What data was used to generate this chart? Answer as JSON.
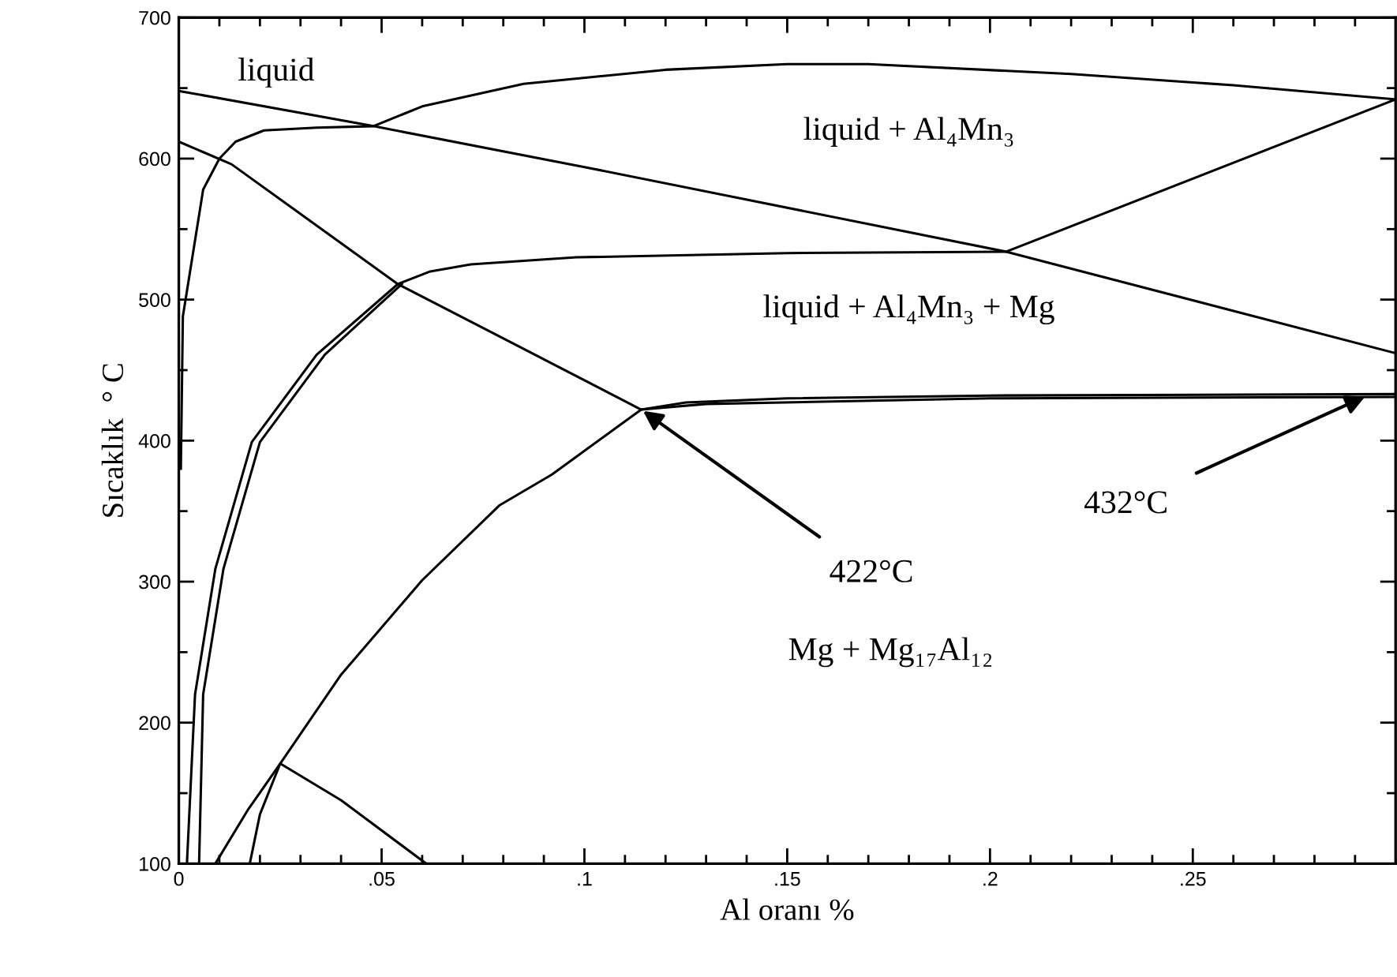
{
  "chart_data": {
    "type": "line",
    "xlabel": "Al oranı %",
    "ylabel": "Sıcaklık  ° C",
    "xlim": [
      0,
      0.3
    ],
    "ylim": [
      100,
      700
    ],
    "xticks": [
      0,
      {
        "value": 0.01,
        "label": null
      },
      {
        "value": 0.02,
        "label": null
      },
      {
        "value": 0.03,
        "label": null
      },
      {
        "value": 0.04,
        "label": null
      },
      {
        "value": 0.05,
        "label": ".05"
      },
      {
        "value": 0.06,
        "label": null
      },
      {
        "value": 0.07,
        "label": null
      },
      {
        "value": 0.08,
        "label": null
      },
      {
        "value": 0.09,
        "label": null
      },
      {
        "value": 0.1,
        "label": ".1"
      },
      {
        "value": 0.11,
        "label": null
      },
      {
        "value": 0.12,
        "label": null
      },
      {
        "value": 0.13,
        "label": null
      },
      {
        "value": 0.14,
        "label": null
      },
      {
        "value": 0.15,
        "label": ".15"
      },
      {
        "value": 0.16,
        "label": null
      },
      {
        "value": 0.17,
        "label": null
      },
      {
        "value": 0.18,
        "label": null
      },
      {
        "value": 0.19,
        "label": null
      },
      {
        "value": 0.2,
        "label": ".2"
      },
      {
        "value": 0.21,
        "label": null
      },
      {
        "value": 0.22,
        "label": null
      },
      {
        "value": 0.23,
        "label": null
      },
      {
        "value": 0.24,
        "label": null
      },
      {
        "value": 0.25,
        "label": ".25"
      },
      {
        "value": 0.26,
        "label": null
      },
      {
        "value": 0.27,
        "label": null
      },
      {
        "value": 0.28,
        "label": null
      },
      {
        "value": 0.29,
        "label": null
      }
    ],
    "yticks": [
      100,
      {
        "value": 150,
        "label": null
      },
      200,
      {
        "value": 250,
        "label": null
      },
      300,
      {
        "value": 350,
        "label": null
      },
      400,
      {
        "value": 450,
        "label": null
      },
      500,
      {
        "value": 550,
        "label": null
      },
      600,
      {
        "value": 650,
        "label": null
      },
      700
    ],
    "grid": false,
    "legend": false,
    "marker": "none",
    "line_style": "solid",
    "series": [
      {
        "color": "#000000",
        "x": [
          0,
          0.048,
          0.1,
          0.204,
          0.3
        ],
        "values": [
          648,
          623,
          594,
          534,
          462
        ]
      },
      {
        "color": "#000000",
        "x": [
          0.0005,
          0.001,
          0.003,
          0.006,
          0.01,
          0.014,
          0.021,
          0.034,
          0.048,
          0.06,
          0.085,
          0.12,
          0.15,
          0.17,
          0.22,
          0.26,
          0.3
        ],
        "values": [
          380,
          488,
          524,
          578,
          600,
          612,
          620,
          622,
          623,
          637,
          653,
          663,
          667,
          667,
          660,
          652,
          642
        ]
      },
      {
        "color": "#000000",
        "x": [
          0.002,
          0.004,
          0.009,
          0.018,
          0.034,
          0.054,
          0.062,
          0.072,
          0.098,
          0.15,
          0.204,
          0.3
        ],
        "values": [
          100,
          220,
          309,
          399,
          461,
          511,
          520,
          525,
          530,
          533,
          534,
          642
        ]
      },
      {
        "color": "#000000",
        "x": [
          0,
          0.013,
          0.054,
          0.079,
          0.114,
          0.125,
          0.15,
          0.2,
          0.3
        ],
        "values": [
          612,
          596,
          511,
          474,
          422,
          427,
          430,
          432,
          433
        ]
      },
      {
        "color": "#000000",
        "x": [
          0.009,
          0.017,
          0.025,
          0.04,
          0.06,
          0.079,
          0.092,
          0.114,
          0.13,
          0.2,
          0.3
        ],
        "values": [
          100,
          138,
          171,
          234,
          301,
          354,
          376,
          422,
          426,
          430,
          431
        ]
      },
      {
        "color": "#000000",
        "x": [
          0.005,
          0.006,
          0.011,
          0.02,
          0.036,
          0.055
        ],
        "values": [
          100,
          220,
          309,
          399,
          461,
          511
        ]
      },
      {
        "color": "#000000",
        "x": [
          0.0175,
          0.02,
          0.025,
          0.04,
          0.061
        ],
        "values": [
          100,
          135,
          171,
          145,
          100
        ]
      }
    ],
    "annotations": [
      "liquid",
      "liquid + Al₄Mn₃",
      "liquid + Al₄Mn₃ + Mg",
      "Mg + Mg₁₇Al₁₂",
      {
        "text": "422°C",
        "x": 0.114,
        "y": 422
      },
      {
        "text": "432°C",
        "x": 0.293,
        "y": 432
      }
    ]
  }
}
